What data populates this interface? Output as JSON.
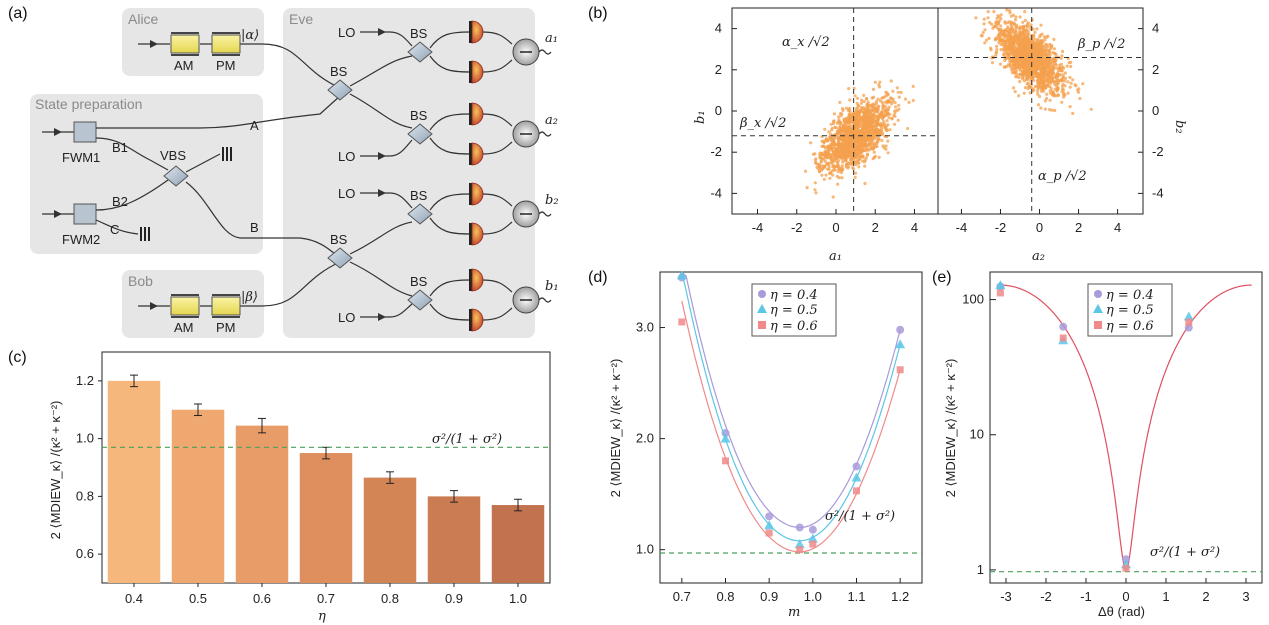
{
  "figure_labels": {
    "a": "(a)",
    "b": "(b)",
    "c": "(c)",
    "d": "(d)",
    "e": "(e)"
  },
  "setup": {
    "alice_title": "Alice",
    "eve_title": "Eve",
    "bob_title": "Bob",
    "state_prep_title": "State preparation",
    "am_label": "AM",
    "pm_label": "PM",
    "alpha_ket": "|α⟩",
    "beta_ket": "|β⟩",
    "lo_label": "LO",
    "bs_label": "BS",
    "vbs_label": "VBS",
    "fwm1_label": "FWM1",
    "fwm2_label": "FWM2",
    "b1_label": "B1",
    "b2_label": "B2",
    "c_label": "C",
    "a_label": "A",
    "b_label": "B",
    "out_a1": "a₁",
    "out_a2": "a₂",
    "out_b2": "b₂",
    "out_b1": "b₁"
  },
  "colors": {
    "scatter": "#f4a04e",
    "box_bg": "#e6e6e6",
    "bar_gradient": [
      "#f5b77b",
      "#eea870",
      "#e89d68",
      "#df8e5d",
      "#d48556",
      "#cb7c52",
      "#c3724f"
    ],
    "eta04": "#a99ad9",
    "eta05": "#5bc6e6",
    "eta06": "#f08a8a",
    "ref_line": "#4aa05a",
    "fit_e": "#e04f5f"
  },
  "chart_data": [
    {
      "id": "b",
      "type": "scatter",
      "left": {
        "xlabel": "a₁",
        "ylabel": "b₁",
        "xlim": [
          -5.3,
          5.2
        ],
        "ylim": [
          -5,
          5
        ],
        "xticks": [
          "-4",
          "-2",
          "0",
          "2",
          "4"
        ],
        "yticks": [
          "4",
          "2",
          "0",
          "-2",
          "-4"
        ],
        "center": [
          1.0,
          -1.2
        ],
        "vline": 0.9,
        "hline": -1.2,
        "annot_v": "α_x /√2",
        "annot_h": "β_x /√2"
      },
      "right": {
        "xlabel": "a₂",
        "ylabel": "b₂",
        "xlim": [
          -5.2,
          5.3
        ],
        "ylim": [
          -5,
          5
        ],
        "xticks": [
          "-4",
          "-2",
          "0",
          "2",
          "4"
        ],
        "yticks": [
          "4",
          "2",
          "0",
          "-2",
          "-4"
        ],
        "center": [
          -0.5,
          2.6
        ],
        "vline": -0.4,
        "hline": 2.6,
        "annot_v": "α_p /√2",
        "annot_h": "β_p /√2"
      }
    },
    {
      "id": "c",
      "type": "bar",
      "categories": [
        "0.4",
        "0.5",
        "0.6",
        "0.7",
        "0.8",
        "0.9",
        "1.0"
      ],
      "values": [
        1.2,
        1.1,
        1.045,
        0.95,
        0.865,
        0.8,
        0.77
      ],
      "errors": [
        0.02,
        0.02,
        0.025,
        0.02,
        0.02,
        0.02,
        0.02
      ],
      "xlabel": "η",
      "ylabel": "2 ⟨MDIEW_κ⟩ /(κ² + κ⁻²)",
      "ylim": [
        0.5,
        1.3
      ],
      "yticks": [
        "0.6",
        "0.8",
        "1.0",
        "1.2"
      ],
      "ref_value": 0.97,
      "ref_label": "σ²/(1 + σ²)"
    },
    {
      "id": "d",
      "type": "scatter",
      "xlabel": "m",
      "ylabel": "2 ⟨MDIEW_κ⟩ /(κ² + κ⁻²)",
      "xlim": [
        0.65,
        1.25
      ],
      "ylim": [
        0.7,
        3.5
      ],
      "xticks": [
        "0.7",
        "0.8",
        "0.9",
        "1.0",
        "1.1",
        "1.2"
      ],
      "yticks": [
        "1.0",
        "2.0",
        "3.0"
      ],
      "x": [
        0.7,
        0.8,
        0.9,
        0.97,
        1.0,
        1.1,
        1.2
      ],
      "series": [
        {
          "name": "η = 0.4",
          "values": [
            3.45,
            2.05,
            1.3,
            1.2,
            1.18,
            1.75,
            2.98
          ],
          "fit_min": 1.2
        },
        {
          "name": "η = 0.5",
          "values": [
            3.47,
            2.0,
            1.22,
            1.05,
            1.1,
            1.65,
            2.85
          ],
          "fit_min": 1.08
        },
        {
          "name": "η = 0.6",
          "values": [
            3.05,
            1.8,
            1.15,
            1.0,
            1.05,
            1.53,
            2.62
          ],
          "fit_min": 0.98
        }
      ],
      "ref_value": 0.97,
      "ref_label": "σ²/(1 + σ²)"
    },
    {
      "id": "e",
      "type": "scatter",
      "xlabel": "Δθ (rad)",
      "ylabel": "2 ⟨MDIEW_κ⟩ /(κ² + κ⁻²)",
      "xlim": [
        -3.4,
        3.4
      ],
      "ylim_log": [
        0.8,
        160
      ],
      "xticks": [
        "-3",
        "-2",
        "-1",
        "0",
        "1",
        "2",
        "3"
      ],
      "yticks": [
        "1",
        "10",
        "100"
      ],
      "x": [
        -3.14,
        -1.57,
        0,
        1.57
      ],
      "series": [
        {
          "name": "η = 0.4",
          "values": [
            125,
            63,
            1.2,
            62
          ]
        },
        {
          "name": "η = 0.5",
          "values": [
            128,
            50,
            1.1,
            75
          ]
        },
        {
          "name": "η = 0.6",
          "values": [
            112,
            52,
            1.03,
            68
          ]
        }
      ],
      "fit_amplitude": 128,
      "ref_value": 0.97,
      "ref_label": "σ²/(1 + σ²)"
    }
  ]
}
